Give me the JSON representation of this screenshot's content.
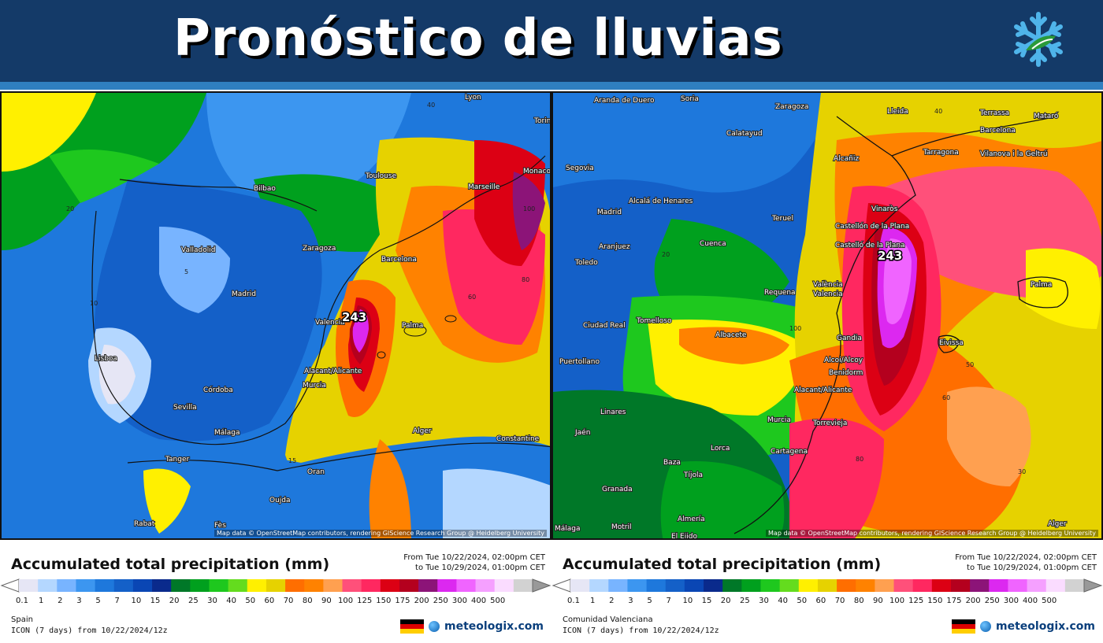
{
  "header": {
    "title": "Pronóstico de lluvias",
    "logo_icon": "snowflake-icon",
    "background_color": "#143a68",
    "stripe_color": "#2f7fc0"
  },
  "maps": [
    {
      "id": "spain",
      "places": [
        "Bilbao",
        "Toulouse",
        "Marseille",
        "Monaco",
        "Valladolid",
        "Zaragoza",
        "Barcelona",
        "Madrid",
        "Valencia",
        "Lisboa",
        "Palma",
        "Córdoba",
        "Alacant/Alicante",
        "Murcia",
        "Sevilla",
        "Málaga",
        "Alger",
        "Constantine",
        "Tanger",
        "Oran",
        "Oujda",
        "Rabat",
        "Fès",
        "Lyon",
        "Torino"
      ],
      "max_value_label": "243",
      "contour_labels": [
        "20",
        "5",
        "40",
        "60",
        "100",
        "80",
        "10",
        "15"
      ],
      "attribution": "Map data © OpenStreetMap contributors, rendering GIScience Research Group @ Heidelberg University"
    },
    {
      "id": "comunidad-valenciana",
      "places": [
        "Aranda de Duero",
        "Soria",
        "Zaragoza",
        "Lleida",
        "Terrassa",
        "Mataró",
        "Barcelona",
        "Calatayud",
        "Segovia",
        "Alcañiz",
        "Tarragona",
        "Vilanova i la Geltrú",
        "Alcalá de Henares",
        "Madrid",
        "Teruel",
        "Vinaròs",
        "Aranjuez",
        "Cuenca",
        "Castellón de la Plana",
        "Castelló de la Plana",
        "Toledo",
        "Requena",
        "València",
        "Valencia",
        "Palma",
        "Tomelloso",
        "Ciudad Real",
        "Albacete",
        "Gandia",
        "Eivissa",
        "Puertollano",
        "Alcoi/Alcoy",
        "Benidorm",
        "Alacant/Alicante",
        "Linares",
        "Jaén",
        "Murcia",
        "Torrevieja",
        "Lorca",
        "Cartagena",
        "Baza",
        "Tíjola",
        "Granada",
        "Almería",
        "Motril",
        "El Ejido",
        "Málaga",
        "Alger"
      ],
      "max_value_label": "243",
      "contour_labels": [
        "40",
        "60",
        "80",
        "20",
        "30",
        "50",
        "100"
      ],
      "attribution": "Map data © OpenStreetMap contributors, rendering GIScience Research Group @ Heidelberg University"
    }
  ],
  "legends": [
    {
      "title": "Accumulated total precipitation (mm)",
      "range_from": "From Tue 10/22/2024, 02:00pm CET",
      "range_to": "to Tue 10/29/2024, 01:00pm CET",
      "region": "Spain",
      "model": "ICON (7 days) from 10/22/2024/12z",
      "brand": "meteologix.com"
    },
    {
      "title": "Accumulated total precipitation (mm)",
      "range_from": "From Tue 10/22/2024, 02:00pm CET",
      "range_to": "to Tue 10/29/2024, 01:00pm CET",
      "region": "Comunidad Valenciana",
      "model": "ICON (7 days) from 10/22/2024/12z",
      "brand": "meteologix.com"
    }
  ],
  "scale": {
    "values": [
      "0.1",
      "1",
      "2",
      "3",
      "5",
      "7",
      "10",
      "15",
      "20",
      "25",
      "30",
      "40",
      "50",
      "60",
      "70",
      "80",
      "90",
      "100",
      "125",
      "150",
      "175",
      "200",
      "250",
      "300",
      "400",
      "500"
    ],
    "colors": [
      "#e6e6f5",
      "#b4d7ff",
      "#78b4ff",
      "#3c96f0",
      "#1e78dc",
      "#1460c8",
      "#0a46b4",
      "#0a2a8c",
      "#007828",
      "#00a01e",
      "#1ec81e",
      "#64dc1e",
      "#fff000",
      "#e6d200",
      "#ff6e00",
      "#ff8200",
      "#ffa050",
      "#ff507a",
      "#ff2860",
      "#dc0014",
      "#b4001e",
      "#8c1478",
      "#dc28f0",
      "#f064ff",
      "#f5a0ff",
      "#fadcff",
      "#d2d2d2"
    ]
  },
  "flag_colors": [
    "#000000",
    "#dd0000",
    "#ffce00"
  ]
}
